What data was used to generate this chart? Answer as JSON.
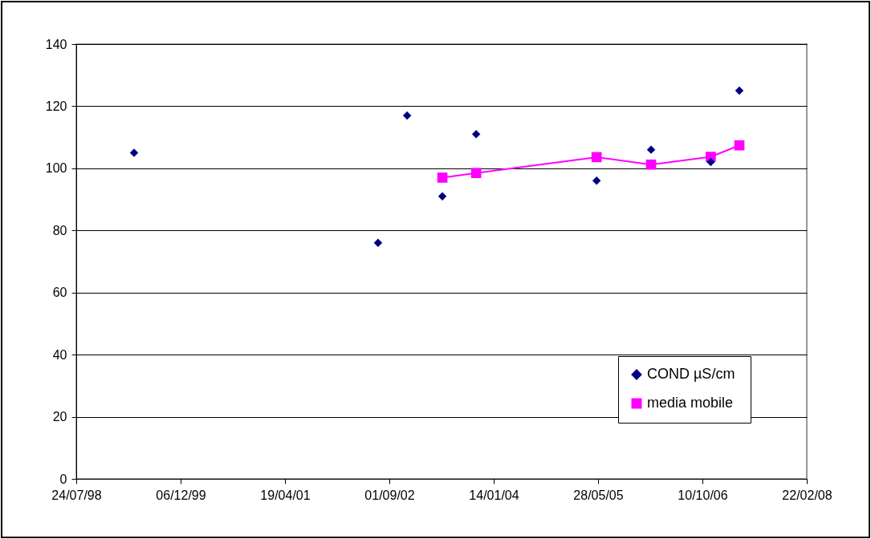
{
  "chart_data": {
    "type": "scatter",
    "xlim": [
      "1998-07-24",
      "2008-02-22"
    ],
    "xticks": [
      {
        "value": "1998-07-24",
        "label": "24/07/98"
      },
      {
        "value": "1999-12-06",
        "label": "06/12/99"
      },
      {
        "value": "2001-04-19",
        "label": "19/04/01"
      },
      {
        "value": "2002-09-01",
        "label": "01/09/02"
      },
      {
        "value": "2004-01-14",
        "label": "14/01/04"
      },
      {
        "value": "2005-05-28",
        "label": "28/05/05"
      },
      {
        "value": "2006-10-10",
        "label": "10/10/06"
      },
      {
        "value": "2008-02-22",
        "label": "22/02/08"
      }
    ],
    "ylim": [
      0,
      140
    ],
    "yticks": [
      0,
      20,
      40,
      60,
      80,
      100,
      120,
      140
    ],
    "grid": "y",
    "legend": "bottom right",
    "series": [
      {
        "name": "COND  µS/cm",
        "type": "scatter",
        "marker": "diamond",
        "color": "#000080",
        "x": [
          "1999-04-27",
          "2002-07-09",
          "2002-11-25",
          "2003-05-13",
          "2003-10-22",
          "2005-05-21",
          "2006-02-06",
          "2006-11-19",
          "2007-04-05"
        ],
        "values": [
          105,
          76,
          117,
          91,
          111,
          96,
          106,
          102,
          125
        ]
      },
      {
        "name": "media mobile",
        "type": "line",
        "marker": "square",
        "color": "#ff00ff",
        "x": [
          "2003-05-13",
          "2003-10-22",
          "2005-05-21",
          "2006-02-06",
          "2006-11-19",
          "2007-04-05"
        ],
        "values": [
          97,
          98.5,
          103.6,
          101.2,
          103.7,
          107.4
        ]
      }
    ]
  }
}
